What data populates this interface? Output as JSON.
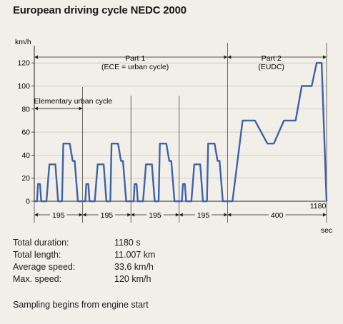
{
  "title": "European driving cycle NEDC 2000",
  "stats": [
    {
      "label": "Total duration:",
      "value": "1180 s"
    },
    {
      "label": "Total length:",
      "value": "11.007 km"
    },
    {
      "label": "Average speed:",
      "value": "33.6 km/h"
    },
    {
      "label": "Max. speed:",
      "value": "120 km/h"
    }
  ],
  "note": "Sampling begins from engine start",
  "chart_data": {
    "type": "line",
    "title": "European driving cycle NEDC 2000",
    "ylabel": "km/h",
    "xlabel": "sec",
    "ylim": [
      0,
      130
    ],
    "xlim": [
      0,
      1180
    ],
    "yticks": [
      0,
      20,
      40,
      60,
      80,
      100,
      120
    ],
    "grid": true,
    "line_color": "#3d63a8",
    "annotations": {
      "part1": [
        "Part 1",
        "(ECE = urban cycle)"
      ],
      "part2": [
        "Part 2",
        "(EUDC)"
      ],
      "elementary": "Elementary urban cycle",
      "spans": [
        "195",
        "195",
        "195",
        "195",
        "400"
      ],
      "end_label": "1180"
    },
    "series": [
      {
        "x": [
          0,
          11,
          15,
          23,
          28,
          49,
          61,
          85,
          96,
          112,
          117,
          143,
          155,
          163,
          176,
          188,
          195,
          206,
          210,
          218,
          223,
          244,
          256,
          280,
          291,
          307,
          312,
          338,
          350,
          358,
          371,
          383,
          390,
          401,
          405,
          413,
          418,
          439,
          451,
          475,
          486,
          502,
          507,
          533,
          545,
          553,
          566,
          578,
          585,
          596,
          600,
          608,
          613,
          634,
          646,
          670,
          681,
          697,
          702,
          728,
          740,
          748,
          761,
          773,
          780,
          800,
          841,
          891,
          941,
          967,
          1008,
          1055,
          1080,
          1120,
          1140,
          1160,
          1180
        ],
        "y": [
          0,
          0,
          15,
          15,
          0,
          0,
          32,
          32,
          0,
          0,
          50,
          50,
          35,
          35,
          0,
          0,
          0,
          0,
          15,
          15,
          0,
          0,
          32,
          32,
          0,
          0,
          50,
          50,
          35,
          35,
          0,
          0,
          0,
          0,
          15,
          15,
          0,
          0,
          32,
          32,
          0,
          0,
          50,
          50,
          35,
          35,
          0,
          0,
          0,
          0,
          15,
          15,
          0,
          0,
          32,
          32,
          0,
          0,
          50,
          50,
          35,
          35,
          0,
          0,
          0,
          0,
          70,
          70,
          50,
          50,
          70,
          70,
          100,
          100,
          120,
          120,
          0
        ]
      }
    ]
  }
}
